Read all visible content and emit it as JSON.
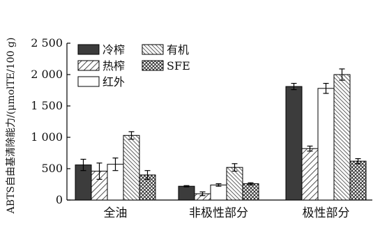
{
  "chart_data": {
    "type": "bar",
    "title": "",
    "xlabel": "",
    "ylabel": "ABTS自由基清除能力/(μmolTE/100 g)",
    "ylim": [
      0,
      2500
    ],
    "yticks": [
      0,
      500,
      1000,
      1500,
      2000,
      2500
    ],
    "ytick_labels": [
      "0",
      "500",
      "1 000",
      "1 500",
      "2 000",
      "2 500"
    ],
    "categories": [
      "全油",
      "非极性部分",
      "极性部分"
    ],
    "grid": false,
    "legend_position": "top-left",
    "series": [
      {
        "name": "冷榨",
        "pattern": "solid-dark",
        "values": [
          560,
          220,
          1810
        ],
        "errors": [
          90,
          10,
          50
        ]
      },
      {
        "name": "热榨",
        "pattern": "diagonal",
        "values": [
          460,
          100,
          820
        ],
        "errors": [
          130,
          30,
          40
        ]
      },
      {
        "name": "红外",
        "pattern": "white",
        "values": [
          570,
          240,
          1780
        ],
        "errors": [
          100,
          20,
          80
        ]
      },
      {
        "name": "有机",
        "pattern": "dense-diagonal",
        "values": [
          1030,
          520,
          2000
        ],
        "errors": [
          60,
          60,
          90
        ]
      },
      {
        "name": "SFE",
        "pattern": "crosshatch",
        "values": [
          400,
          260,
          620
        ],
        "errors": [
          70,
          15,
          40
        ]
      }
    ]
  }
}
